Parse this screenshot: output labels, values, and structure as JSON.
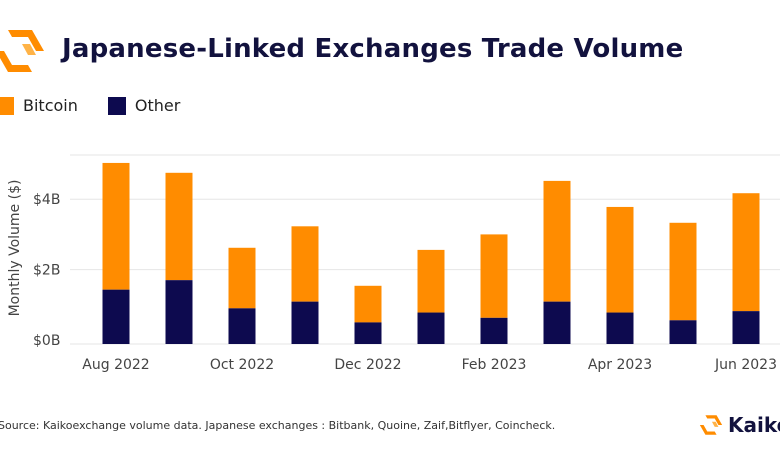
{
  "header": {
    "title": "Japanese-Linked Exchanges Trade Volume"
  },
  "colors": {
    "bitcoin": "#ff8c00",
    "other": "#0d0a4f",
    "title": "#12123e",
    "grid": "#e6e6e6",
    "axis_text": "#444444"
  },
  "chart_data": {
    "type": "bar",
    "stacked": true,
    "title": "Japanese-Linked Exchanges Trade Volume",
    "ylabel": "Monthly Volume ($)",
    "xlabel": "",
    "ylim": [
      0,
      5.5
    ],
    "yticks": [
      0,
      2,
      4
    ],
    "ytick_labels": [
      "$0B",
      "$2B",
      "$4B"
    ],
    "categories": [
      "Aug 2022",
      "Sep 2022",
      "Oct 2022",
      "Nov 2022",
      "Dec 2022",
      "Jan 2023",
      "Feb 2023",
      "Mar 2023",
      "Apr 2023",
      "May 2023",
      "Jun 2023"
    ],
    "xtick_labels": [
      "Aug 2022",
      "",
      "Oct 2022",
      "",
      "Dec 2022",
      "",
      "Feb 2023",
      "",
      "Apr 2023",
      "",
      "Jun 2023"
    ],
    "legend_position": "top-left",
    "grid": true,
    "series": [
      {
        "name": "Other",
        "values": [
          1.43,
          1.7,
          0.9,
          1.09,
          0.5,
          0.78,
          0.63,
          1.09,
          0.78,
          0.56,
          0.82
        ]
      },
      {
        "name": "Bitcoin",
        "values": [
          3.6,
          3.05,
          1.72,
          2.14,
          1.04,
          1.78,
          2.37,
          3.43,
          3.0,
          2.77,
          3.35
        ]
      }
    ]
  },
  "legend": {
    "items": [
      {
        "label": "Bitcoin"
      },
      {
        "label": "Other"
      }
    ]
  },
  "footer": {
    "source": "Source: Kaikoexchange volume data. Japanese exchanges : Bitbank, Quoine, Zaif,Bitflyer, Coincheck."
  },
  "brand": {
    "name": "Kaiko"
  },
  "icons": {
    "logo": "kaiko-logo-icon"
  }
}
